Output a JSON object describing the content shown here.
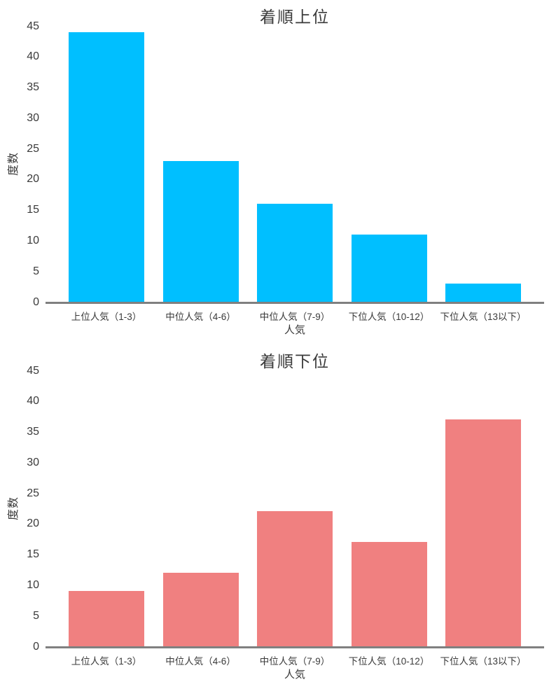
{
  "style_colors": {
    "background": "#FFFFFF",
    "axis": "#808080",
    "text": "#3A3A3A",
    "top_bar_color": "#00BFFF",
    "bottom_bar_color": "#F08080"
  },
  "chart_data": [
    {
      "type": "bar",
      "title": "着順上位",
      "categories": [
        "上位人気（1-3）",
        "中位人気（4-6）",
        "中位人気（7-9）",
        "下位人気（10-12）",
        "下位人気（13以下）"
      ],
      "values": [
        44,
        23,
        16,
        11,
        3
      ],
      "xlabel": "人気",
      "ylabel": "度数",
      "ylim": [
        0,
        45
      ],
      "yticks": [
        0,
        5,
        10,
        15,
        20,
        25,
        30,
        35,
        40,
        45
      ],
      "bar_color": "#00BFFF",
      "grid": false,
      "legend": "none"
    },
    {
      "type": "bar",
      "title": "着順下位",
      "categories": [
        "上位人気（1-3）",
        "中位人気（4-6）",
        "中位人気（7-9）",
        "下位人気（10-12）",
        "下位人気（13以下）"
      ],
      "values": [
        9,
        12,
        22,
        17,
        37
      ],
      "xlabel": "人気",
      "ylabel": "度数",
      "ylim": [
        0,
        45
      ],
      "yticks": [
        0,
        5,
        10,
        15,
        20,
        25,
        30,
        35,
        40,
        45
      ],
      "bar_color": "#F08080",
      "grid": false,
      "legend": "none"
    }
  ]
}
